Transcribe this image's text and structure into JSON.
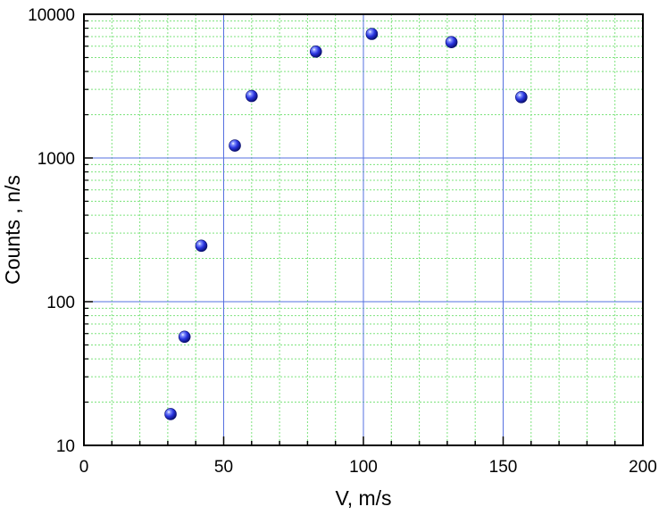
{
  "chart_data": {
    "type": "scatter",
    "title": "",
    "xlabel": "V, m/s",
    "ylabel": "Counts , n/s",
    "xlim": [
      0,
      200
    ],
    "ylim": [
      10,
      10000
    ],
    "yscale": "log",
    "grid": true,
    "x_ticks": [
      0,
      50,
      100,
      150,
      200
    ],
    "x_tick_labels": [
      "0",
      "50",
      "100",
      "150",
      "200"
    ],
    "y_ticks": [
      10,
      100,
      1000,
      10000
    ],
    "y_tick_labels": [
      "10",
      "100",
      "1000",
      "10000"
    ],
    "series": [
      {
        "marker": "sphere",
        "color": "#2a35e0",
        "points": [
          {
            "x": 31,
            "y": 16.5
          },
          {
            "x": 36,
            "y": 57
          },
          {
            "x": 42,
            "y": 245
          },
          {
            "x": 54,
            "y": 1220
          },
          {
            "x": 60,
            "y": 2700
          },
          {
            "x": 83,
            "y": 5500
          },
          {
            "x": 103,
            "y": 7300
          },
          {
            "x": 131.5,
            "y": 6400
          },
          {
            "x": 156.5,
            "y": 2650
          }
        ]
      }
    ],
    "colors": {
      "minor_grid": "#7de37d",
      "major_grid": "#5570e0",
      "axis": "#000000"
    }
  }
}
